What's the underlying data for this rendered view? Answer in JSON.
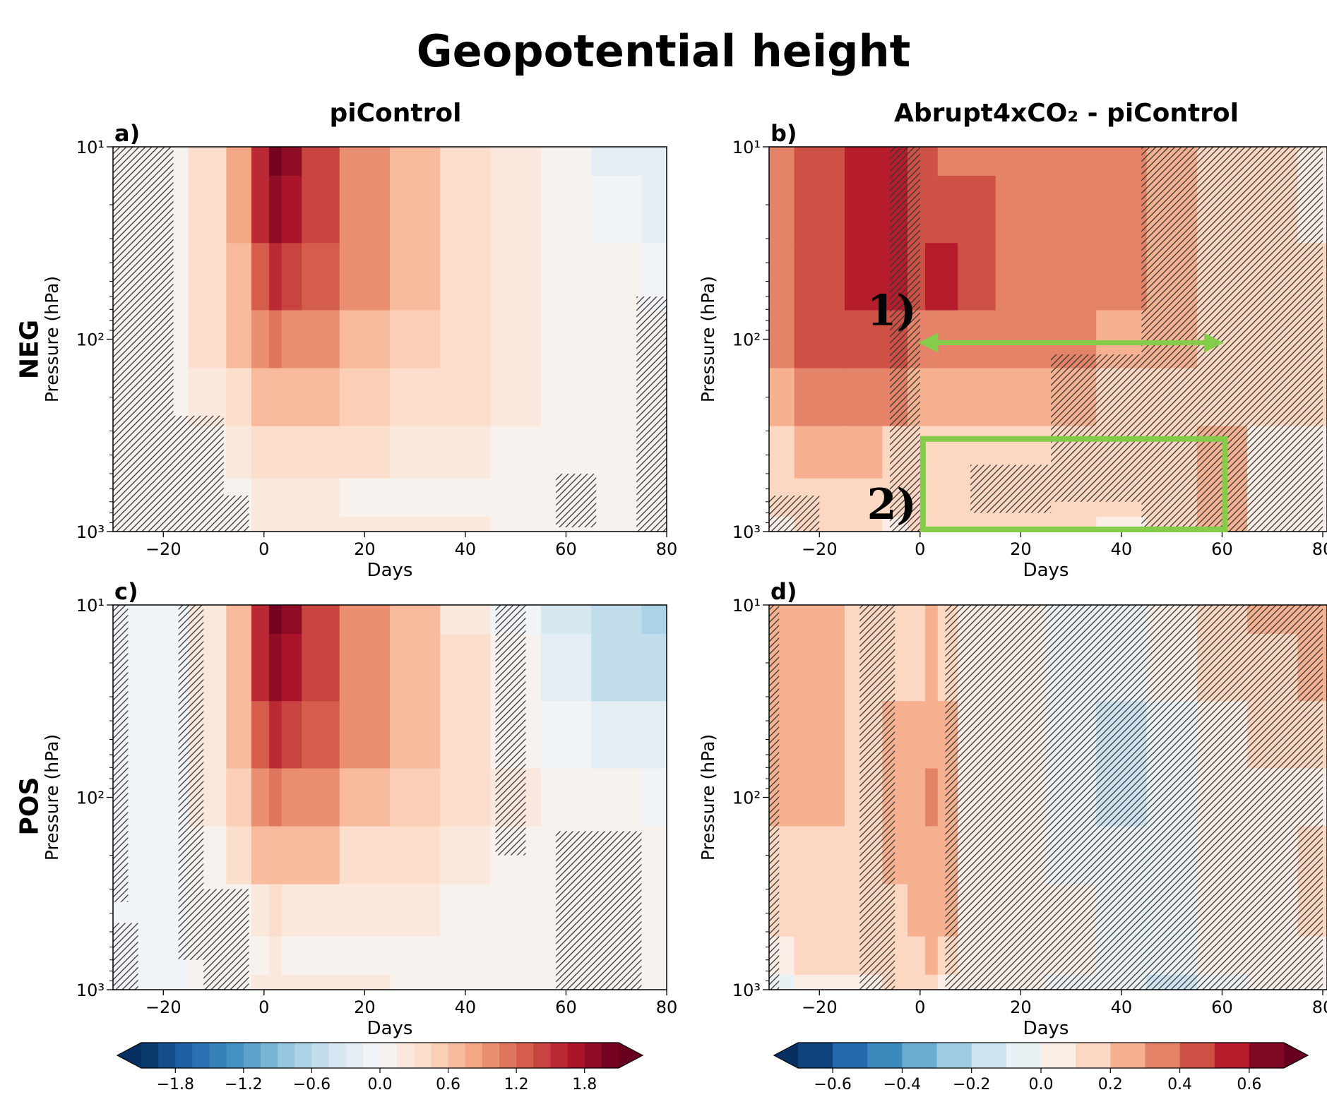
{
  "figure": {
    "title": "Geopotential height",
    "col_titles": [
      "piControl",
      "Abrupt4xCO₂ - piControl"
    ],
    "row_labels": [
      "NEG",
      "POS"
    ]
  },
  "chart_data": [
    {
      "panel": "a)",
      "type": "heatmap",
      "row": "NEG",
      "column": "piControl",
      "xlabel": "Days",
      "ylabel": "Pressure (hPa)",
      "xlim": [
        -30,
        80
      ],
      "xticks": [
        -20,
        0,
        20,
        40,
        60,
        80
      ],
      "ylim": [
        1000,
        10
      ],
      "yscale": "log",
      "yticks": [
        "10¹",
        "10²",
        "10³"
      ],
      "x": [
        -30,
        -20,
        -10,
        -5,
        0,
        2,
        5,
        10,
        20,
        30,
        40,
        50,
        60,
        70,
        80
      ],
      "levels_hPa": [
        10,
        20,
        50,
        100,
        200,
        400,
        700,
        1000
      ],
      "values": [
        [
          0.0,
          0.0,
          0.4,
          0.8,
          1.6,
          2.1,
          1.8,
          1.4,
          1.0,
          0.6,
          0.4,
          0.2,
          0.0,
          -0.2,
          -0.3
        ],
        [
          0.0,
          0.0,
          0.4,
          0.8,
          1.5,
          1.9,
          1.7,
          1.4,
          1.0,
          0.7,
          0.4,
          0.2,
          0.1,
          -0.1,
          -0.3
        ],
        [
          0.0,
          0.0,
          0.3,
          0.7,
          1.2,
          1.5,
          1.4,
          1.2,
          0.9,
          0.7,
          0.4,
          0.2,
          0.1,
          0.0,
          -0.1
        ],
        [
          0.0,
          0.0,
          0.3,
          0.6,
          0.9,
          1.1,
          1.0,
          0.9,
          0.7,
          0.5,
          0.4,
          0.2,
          0.1,
          0.1,
          0.0
        ],
        [
          0.0,
          0.0,
          0.2,
          0.4,
          0.6,
          0.7,
          0.7,
          0.6,
          0.5,
          0.4,
          0.3,
          0.2,
          0.1,
          0.1,
          0.1
        ],
        [
          0.0,
          0.0,
          0.1,
          0.2,
          0.3,
          0.3,
          0.3,
          0.3,
          0.3,
          0.2,
          0.2,
          0.1,
          0.1,
          0.1,
          0.1
        ],
        [
          0.0,
          0.0,
          0.0,
          0.1,
          0.2,
          0.2,
          0.2,
          0.2,
          0.1,
          0.1,
          0.1,
          0.1,
          0.1,
          0.1,
          0.1
        ],
        [
          0.0,
          0.0,
          0.0,
          0.1,
          0.2,
          0.2,
          0.2,
          0.2,
          0.2,
          0.2,
          0.2,
          0.1,
          0.1,
          0.1,
          0.1
        ]
      ],
      "hatched_not_significant": [
        [
          -30,
          -18,
          10,
          1000
        ],
        [
          -18,
          -8,
          250,
          1000
        ],
        [
          -8,
          -3,
          650,
          1000
        ],
        [
          58,
          66,
          500,
          950
        ],
        [
          74,
          80,
          60,
          1000
        ]
      ]
    },
    {
      "panel": "b)",
      "type": "heatmap",
      "row": "NEG",
      "column": "Abrupt4xCO₂ - piControl",
      "xlabel": "Days",
      "ylabel": "Pressure (hPa)",
      "xlim": [
        -30,
        80
      ],
      "xticks": [
        -20,
        0,
        20,
        40,
        60,
        80
      ],
      "ylim": [
        1000,
        10
      ],
      "yscale": "log",
      "yticks": [
        "10¹",
        "10²",
        "10³"
      ],
      "x": [
        -30,
        -20,
        -10,
        -5,
        0,
        2,
        5,
        10,
        20,
        30,
        40,
        50,
        60,
        70,
        80
      ],
      "levels_hPa": [
        10,
        20,
        50,
        100,
        200,
        400,
        700,
        1000
      ],
      "values": [
        [
          0.35,
          0.45,
          0.5,
          0.5,
          0.45,
          0.4,
          0.35,
          0.35,
          0.35,
          0.35,
          0.3,
          0.25,
          0.15,
          0.1,
          0.05
        ],
        [
          0.35,
          0.45,
          0.5,
          0.5,
          0.45,
          0.45,
          0.4,
          0.4,
          0.35,
          0.35,
          0.3,
          0.25,
          0.15,
          0.1,
          0.05
        ],
        [
          0.35,
          0.45,
          0.5,
          0.5,
          0.45,
          0.55,
          0.5,
          0.45,
          0.35,
          0.3,
          0.3,
          0.25,
          0.15,
          0.1,
          0.1
        ],
        [
          0.3,
          0.45,
          0.45,
          0.4,
          0.35,
          0.35,
          0.35,
          0.3,
          0.3,
          0.3,
          0.25,
          0.2,
          0.15,
          0.1,
          0.1
        ],
        [
          0.25,
          0.35,
          0.3,
          0.3,
          0.25,
          0.25,
          0.25,
          0.25,
          0.2,
          0.2,
          0.15,
          0.15,
          0.15,
          0.1,
          0.1
        ],
        [
          0.15,
          0.25,
          0.2,
          0.15,
          0.15,
          0.15,
          0.15,
          0.15,
          0.15,
          0.1,
          0.1,
          0.15,
          0.2,
          0.05,
          0.05
        ],
        [
          0.1,
          0.15,
          0.1,
          0.1,
          0.1,
          0.1,
          0.15,
          0.15,
          0.15,
          0.1,
          0.1,
          0.15,
          0.25,
          0.05,
          0.0
        ],
        [
          0.05,
          0.1,
          0.1,
          0.05,
          0.1,
          0.1,
          0.1,
          0.1,
          0.1,
          0.1,
          0.05,
          0.1,
          0.2,
          0.0,
          0.0
        ]
      ],
      "hatched_not_significant": [
        [
          -6,
          0,
          10,
          1000
        ],
        [
          -30,
          -20,
          650,
          1000
        ],
        [
          26,
          44,
          120,
          700
        ],
        [
          44,
          80,
          10,
          1000
        ],
        [
          10,
          26,
          450,
          800
        ]
      ],
      "annotations": [
        {
          "label": "1)",
          "kind": "double-arrow",
          "x_range": [
            0,
            60
          ],
          "pressure_hPa": 100,
          "color": "#84cc4a"
        },
        {
          "label": "2)",
          "kind": "box",
          "x_range": [
            0,
            60
          ],
          "pressure_range": [
            330,
            1000
          ],
          "color": "#84cc4a"
        }
      ]
    },
    {
      "panel": "c)",
      "type": "heatmap",
      "row": "POS",
      "column": "piControl",
      "xlabel": "Days",
      "ylabel": "Pressure (hPa)",
      "xlim": [
        -30,
        80
      ],
      "xticks": [
        -20,
        0,
        20,
        40,
        60,
        80
      ],
      "ylim": [
        1000,
        10
      ],
      "yscale": "log",
      "yticks": [
        "10¹",
        "10²",
        "10³"
      ],
      "x": [
        -30,
        -20,
        -10,
        -5,
        0,
        2,
        5,
        10,
        20,
        30,
        40,
        50,
        60,
        70,
        80
      ],
      "levels_hPa": [
        10,
        20,
        50,
        100,
        200,
        400,
        700,
        1000
      ],
      "values": [
        [
          -0.1,
          -0.1,
          0.2,
          0.7,
          1.6,
          2.1,
          1.8,
          1.4,
          1.0,
          0.6,
          0.2,
          -0.1,
          -0.4,
          -0.6,
          -0.7
        ],
        [
          -0.1,
          -0.1,
          0.2,
          0.7,
          1.5,
          1.9,
          1.7,
          1.4,
          1.0,
          0.6,
          0.3,
          0.0,
          -0.3,
          -0.5,
          -0.6
        ],
        [
          -0.1,
          -0.1,
          0.2,
          0.6,
          1.2,
          1.5,
          1.4,
          1.2,
          0.9,
          0.6,
          0.3,
          0.1,
          -0.1,
          -0.2,
          -0.3
        ],
        [
          -0.1,
          -0.1,
          0.2,
          0.5,
          0.9,
          1.1,
          1.0,
          0.9,
          0.7,
          0.5,
          0.3,
          0.2,
          0.0,
          0.0,
          -0.1
        ],
        [
          -0.1,
          -0.1,
          0.1,
          0.3,
          0.6,
          0.7,
          0.7,
          0.6,
          0.4,
          0.3,
          0.2,
          0.1,
          0.1,
          0.0,
          0.0
        ],
        [
          -0.1,
          -0.1,
          0.0,
          0.1,
          0.2,
          0.3,
          0.2,
          0.2,
          0.2,
          0.2,
          0.1,
          0.1,
          0.0,
          0.0,
          0.0
        ],
        [
          -0.1,
          -0.1,
          0.0,
          0.1,
          0.1,
          0.2,
          0.1,
          0.1,
          0.1,
          0.1,
          0.1,
          0.0,
          0.0,
          0.0,
          0.0
        ],
        [
          -0.1,
          -0.1,
          0.0,
          0.1,
          0.2,
          0.2,
          0.2,
          0.2,
          0.2,
          0.1,
          0.1,
          0.0,
          0.0,
          0.0,
          0.0
        ]
      ],
      "hatched_not_significant": [
        [
          -30,
          -27,
          10,
          350
        ],
        [
          -30,
          -25,
          450,
          1000
        ],
        [
          -17,
          -12,
          10,
          700
        ],
        [
          -12,
          -3,
          300,
          1000
        ],
        [
          46,
          52,
          10,
          200
        ],
        [
          58,
          75,
          150,
          1000
        ]
      ]
    },
    {
      "panel": "d)",
      "type": "heatmap",
      "row": "POS",
      "column": "Abrupt4xCO₂ - piControl",
      "xlabel": "Days",
      "ylabel": "Pressure (hPa)",
      "xlim": [
        -30,
        80
      ],
      "xticks": [
        -20,
        0,
        20,
        40,
        60,
        80
      ],
      "ylim": [
        1000,
        10
      ],
      "yscale": "log",
      "yticks": [
        "10¹",
        "10²",
        "10³"
      ],
      "x": [
        -30,
        -20,
        -10,
        -5,
        0,
        2,
        5,
        10,
        20,
        30,
        40,
        50,
        60,
        70,
        80
      ],
      "levels_hPa": [
        10,
        20,
        50,
        100,
        200,
        400,
        700,
        1000
      ],
      "values": [
        [
          0.2,
          0.2,
          0.15,
          0.15,
          0.1,
          0.2,
          0.15,
          0.05,
          0.0,
          -0.05,
          -0.05,
          0.0,
          0.1,
          0.2,
          0.25
        ],
        [
          0.2,
          0.2,
          0.15,
          0.15,
          0.15,
          0.2,
          0.15,
          0.05,
          0.0,
          -0.1,
          -0.1,
          0.0,
          0.1,
          0.15,
          0.2
        ],
        [
          0.2,
          0.2,
          0.15,
          0.2,
          0.2,
          0.25,
          0.2,
          0.05,
          0.0,
          -0.1,
          -0.15,
          -0.05,
          0.05,
          0.1,
          0.1
        ],
        [
          0.2,
          0.2,
          0.15,
          0.2,
          0.25,
          0.3,
          0.25,
          0.05,
          0.0,
          -0.1,
          -0.15,
          -0.05,
          0.0,
          0.0,
          0.05
        ],
        [
          0.15,
          0.15,
          0.1,
          0.2,
          0.2,
          0.25,
          0.2,
          0.0,
          0.0,
          -0.05,
          -0.1,
          -0.05,
          0.0,
          0.05,
          0.1
        ],
        [
          0.1,
          0.15,
          0.1,
          0.15,
          0.2,
          0.25,
          0.2,
          0.0,
          0.05,
          0.0,
          -0.05,
          -0.05,
          0.0,
          0.05,
          0.1
        ],
        [
          0.05,
          0.1,
          0.1,
          0.15,
          0.15,
          0.2,
          0.15,
          0.0,
          0.05,
          0.0,
          -0.05,
          -0.05,
          0.0,
          0.0,
          0.05
        ],
        [
          -0.05,
          0.05,
          0.05,
          0.1,
          0.1,
          0.1,
          0.05,
          0.0,
          0.0,
          -0.05,
          -0.1,
          -0.15,
          -0.05,
          0.0,
          0.0
        ]
      ],
      "hatched_not_significant": [
        [
          -30,
          -28,
          10,
          1000
        ],
        [
          -12,
          -5,
          10,
          1000
        ],
        [
          5,
          45,
          10,
          1000
        ],
        [
          45,
          80,
          10,
          1000
        ]
      ]
    }
  ],
  "colorbars": [
    {
      "panels": "a), c)",
      "colormap": "RdBu_r",
      "extend": "both",
      "bounds": [
        -2.1,
        -1.95,
        -1.8,
        -1.65,
        -1.5,
        -1.35,
        -1.2,
        -1.05,
        -0.9,
        -0.75,
        -0.6,
        -0.45,
        -0.3,
        -0.15,
        0.0,
        0.15,
        0.3,
        0.45,
        0.6,
        0.75,
        0.9,
        1.05,
        1.2,
        1.35,
        1.5,
        1.65,
        1.8,
        1.95,
        2.1
      ],
      "tick_labels": [
        "−1.8",
        "−1.2",
        "−0.6",
        "0.0",
        "0.6",
        "1.2",
        "1.8"
      ],
      "tick_values": [
        -1.8,
        -1.2,
        -0.6,
        0.0,
        0.6,
        1.2,
        1.8
      ]
    },
    {
      "panels": "b), d)",
      "colormap": "RdBu_r",
      "extend": "both",
      "bounds": [
        -0.7,
        -0.6,
        -0.5,
        -0.4,
        -0.3,
        -0.2,
        -0.1,
        0.0,
        0.1,
        0.2,
        0.3,
        0.4,
        0.5,
        0.6,
        0.7
      ],
      "tick_labels": [
        "−0.6",
        "−0.4",
        "−0.2",
        "0.0",
        "0.2",
        "0.4",
        "0.6"
      ],
      "tick_values": [
        -0.6,
        -0.4,
        -0.2,
        0.0,
        0.2,
        0.4,
        0.6
      ]
    }
  ],
  "colors": {
    "colormap": [
      "#053061",
      "#2166ac",
      "#4393c3",
      "#92c5de",
      "#d1e5f0",
      "#f7f7f7",
      "#fddbc7",
      "#f4a582",
      "#d6604d",
      "#b2182b",
      "#67001f"
    ],
    "annotation": "#84cc4a",
    "hatch": "#333333"
  }
}
